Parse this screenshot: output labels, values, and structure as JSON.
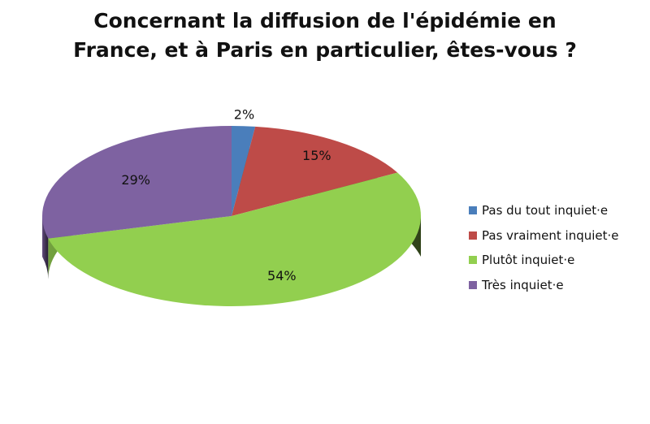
{
  "chart_data": {
    "type": "pie",
    "title": [
      "Concernant la diffusion de l'épidémie en",
      "France, et à Paris en particulier, êtes-vous ?"
    ],
    "categories": [
      "Pas du tout inquiet·e",
      "Pas vraiment inquiet·e",
      "Plutôt inquiet·e",
      "Très inquiet·e"
    ],
    "values": [
      2,
      15,
      54,
      29
    ],
    "data_labels": [
      "2%",
      "15%",
      "54%",
      "29%"
    ],
    "colors": [
      "#4a7ebb",
      "#be4b48",
      "#92cf4f",
      "#7e62a1"
    ],
    "style": "3d",
    "legend_position": "right"
  }
}
